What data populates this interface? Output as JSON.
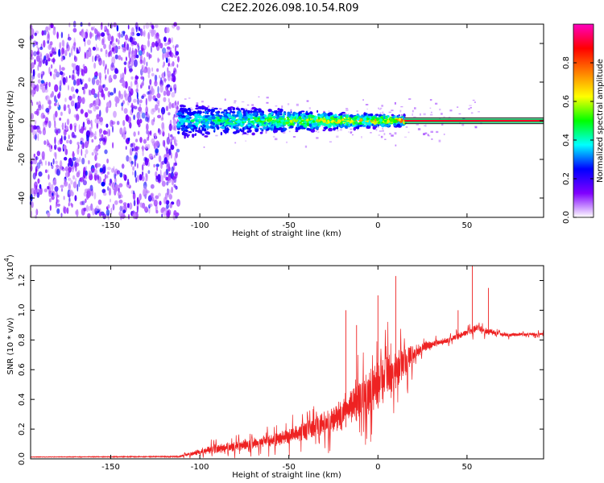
{
  "title": "C2E2.2026.098.10.54.R09",
  "chart_data": [
    {
      "type": "heatmap",
      "xlabel": "Height of straight line (km)",
      "ylabel": "Frequency (Hz)",
      "xlim": [
        -195,
        93
      ],
      "ylim": [
        -50,
        50
      ],
      "xticks": [
        -150,
        -100,
        -50,
        0,
        50
      ],
      "yticks": [
        -40,
        -20,
        0,
        20,
        40
      ],
      "noise_region": {
        "x": [
          -195,
          -112
        ],
        "freq_spread_hz": 50,
        "amplitude": 0.15
      },
      "signal_band": {
        "x": [
          -112,
          15
        ],
        "center_hz": 0,
        "halfwidth_hz": [
          9,
          3
        ],
        "amplitude": [
          0.25,
          0.6
        ]
      },
      "carrier_line": {
        "x": [
          15,
          93
        ],
        "freq_hz": 0,
        "amplitude": 1.0
      },
      "colorbar": {
        "label": "Normalized spectral amplitude",
        "range": [
          0,
          1
        ],
        "ticks": [
          "0.0",
          "0.2",
          "0.4",
          "0.6",
          "0.8"
        ],
        "colors": [
          "#ffffff",
          "#8000ff",
          "#0000ff",
          "#00ffff",
          "#00ff00",
          "#ffff00",
          "#ff8000",
          "#ff0000",
          "#ff00c0"
        ]
      }
    },
    {
      "type": "line",
      "xlabel": "Height of straight line (km)",
      "ylabel": "SNR (10 * v/v)",
      "ylabel_scale": "(x10",
      "ylabel_scale_exp": "4",
      "ylabel_scale_close": ")",
      "xlim": [
        -195,
        93
      ],
      "ylim": [
        0,
        1.3
      ],
      "xticks": [
        -150,
        -100,
        -50,
        0,
        50
      ],
      "yticks": [
        "0.0",
        "0.2",
        "0.4",
        "0.6",
        "0.8",
        "1.0",
        "1.2"
      ],
      "series": [
        {
          "name": "SNR",
          "color": "#ee2222",
          "envelope": [
            [
              -195,
              0.01,
              0.015
            ],
            [
              -112,
              0.01,
              0.02
            ],
            [
              -105,
              0.02,
              0.05
            ],
            [
              -95,
              0.03,
              0.09
            ],
            [
              -80,
              0.05,
              0.12
            ],
            [
              -60,
              0.08,
              0.16
            ],
            [
              -40,
              0.12,
              0.25
            ],
            [
              -20,
              0.2,
              0.4
            ],
            [
              -5,
              0.3,
              0.6
            ],
            [
              5,
              0.4,
              0.7
            ],
            [
              15,
              0.55,
              0.75
            ],
            [
              25,
              0.72,
              0.78
            ],
            [
              40,
              0.78,
              0.82
            ],
            [
              55,
              0.85,
              0.9
            ],
            [
              70,
              0.82,
              0.85
            ],
            [
              93,
              0.83,
              0.85
            ]
          ],
          "peaks": [
            [
              -18,
              1.0
            ],
            [
              -12,
              0.9
            ],
            [
              0,
              1.1
            ],
            [
              10,
              1.23
            ],
            [
              45,
              1.0
            ],
            [
              53,
              1.3
            ],
            [
              62,
              1.15
            ]
          ]
        }
      ]
    }
  ]
}
